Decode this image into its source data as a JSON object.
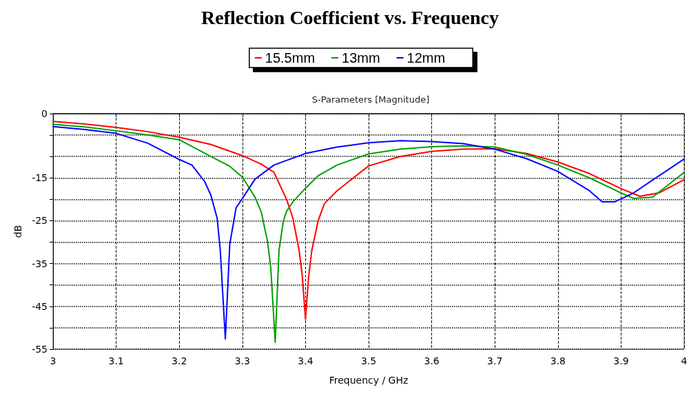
{
  "chart_data": {
    "type": "line",
    "title": "Reflection Coefficient vs. Frequency",
    "subtitle": "S-Parameters [Magnitude]",
    "xlabel": "Frequency / GHz",
    "ylabel": "dB",
    "xlim": [
      3,
      4
    ],
    "xticks": [
      3,
      3.1,
      3.2,
      3.3,
      3.4,
      3.5,
      3.6,
      3.7,
      3.8,
      3.9,
      4
    ],
    "ylim": [
      -55,
      0
    ],
    "yticks": [
      0,
      {
        "value": -5,
        "label": null
      },
      {
        "value": -10,
        "label": null
      },
      -15,
      {
        "value": -20,
        "label": null
      },
      -25,
      {
        "value": -30,
        "label": null
      },
      -35,
      {
        "value": -40,
        "label": null
      },
      -45,
      {
        "value": -50,
        "label": null
      },
      -55
    ],
    "grid": true,
    "legend": "top",
    "marker": "none",
    "line_style": "solid",
    "series": [
      {
        "name": "15.5mm",
        "color": "#ff0000",
        "x": [
          3,
          3.05,
          3.1,
          3.15,
          3.2,
          3.25,
          3.3,
          3.33,
          3.35,
          3.37,
          3.38,
          3.39,
          3.395,
          3.4,
          3.405,
          3.41,
          3.42,
          3.43,
          3.45,
          3.5,
          3.55,
          3.6,
          3.65,
          3.7,
          3.75,
          3.8,
          3.85,
          3.9,
          3.93,
          3.96,
          4
        ],
        "values": [
          -1.8,
          -2.4,
          -3.2,
          -4.2,
          -5.5,
          -7.2,
          -9.8,
          -11.8,
          -13.7,
          -20,
          -24.4,
          -32,
          -38,
          -48,
          -38,
          -32,
          -25,
          -21,
          -18,
          -12.2,
          -10,
          -8.8,
          -8.3,
          -8.2,
          -9.3,
          -11.3,
          -14,
          -17.5,
          -19.3,
          -18.5,
          -15.4
        ]
      },
      {
        "name": "13mm",
        "color": "#00a000",
        "x": [
          3,
          3.05,
          3.1,
          3.15,
          3.2,
          3.25,
          3.28,
          3.3,
          3.32,
          3.33,
          3.34,
          3.345,
          3.352,
          3.358,
          3.365,
          3.37,
          3.38,
          3.4,
          3.42,
          3.45,
          3.5,
          3.55,
          3.6,
          3.65,
          3.7,
          3.75,
          3.8,
          3.85,
          3.9,
          3.92,
          3.95,
          4
        ],
        "values": [
          -2.5,
          -3.1,
          -4,
          -5,
          -6.1,
          -10,
          -12.3,
          -14.8,
          -19.5,
          -23,
          -30,
          -36,
          -53.4,
          -32,
          -25,
          -22.8,
          -20.6,
          -17.4,
          -14.5,
          -12,
          -9.4,
          -8.3,
          -7.7,
          -7.5,
          -7.8,
          -9.5,
          -12,
          -15,
          -18.5,
          -19.8,
          -19.5,
          -13.7
        ]
      },
      {
        "name": "12mm",
        "color": "#0000ff",
        "x": [
          3,
          3.05,
          3.1,
          3.15,
          3.2,
          3.22,
          3.24,
          3.25,
          3.26,
          3.265,
          3.273,
          3.28,
          3.29,
          3.3,
          3.32,
          3.35,
          3.4,
          3.45,
          3.5,
          3.55,
          3.6,
          3.65,
          3.7,
          3.75,
          3.8,
          3.85,
          3.87,
          3.89,
          3.92,
          3.95,
          4
        ],
        "values": [
          -3,
          -3.7,
          -4.6,
          -6.9,
          -10.7,
          -12,
          -15.8,
          -19,
          -24.4,
          -32,
          -52.6,
          -30.5,
          -22,
          -19.8,
          -15.3,
          -12,
          -9.3,
          -7.8,
          -6.8,
          -6.3,
          -6.5,
          -7,
          -8.3,
          -10.5,
          -13.5,
          -18,
          -20.6,
          -20.6,
          -18.5,
          -15.5,
          -10.6
        ]
      }
    ]
  }
}
